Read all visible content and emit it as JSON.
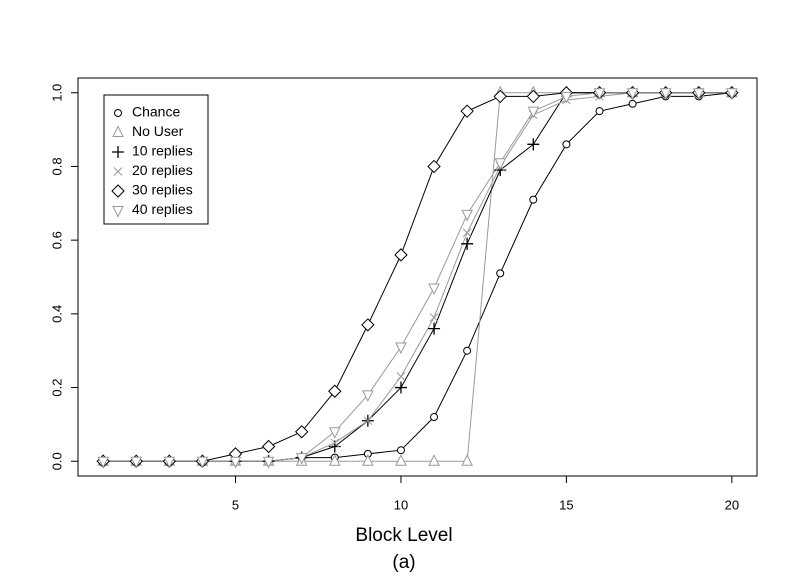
{
  "chart_data": {
    "type": "line",
    "xlabel": "Block Level",
    "caption": "(a)",
    "x": [
      1,
      2,
      3,
      4,
      5,
      6,
      7,
      8,
      9,
      10,
      11,
      12,
      13,
      14,
      15,
      16,
      17,
      18,
      19,
      20
    ],
    "series": [
      {
        "name": "Chance",
        "color": "#000000",
        "marker": "circle",
        "values": [
          0,
          0,
          0,
          0,
          0,
          0,
          0.01,
          0.01,
          0.02,
          0.03,
          0.12,
          0.3,
          0.51,
          0.71,
          0.86,
          0.95,
          0.97,
          0.99,
          0.99,
          1.0
        ]
      },
      {
        "name": "No User",
        "color": "#999999",
        "marker": "triangle",
        "values": [
          0,
          0,
          0,
          0,
          0,
          0,
          0,
          0,
          0,
          0,
          0,
          0,
          1.0,
          1.0,
          1.0,
          1.0,
          1.0,
          1.0,
          1.0,
          1.0
        ]
      },
      {
        "name": "10 replies",
        "color": "#000000",
        "marker": "plus",
        "values": [
          0,
          0,
          0,
          0,
          0,
          0,
          0.01,
          0.04,
          0.11,
          0.2,
          0.36,
          0.59,
          0.79,
          0.86,
          1.0,
          1.0,
          1.0,
          1.0,
          1.0,
          1.0
        ]
      },
      {
        "name": "20 replies",
        "color": "#999999",
        "marker": "cross",
        "values": [
          0,
          0,
          0,
          0,
          0,
          0,
          0.01,
          0.05,
          0.11,
          0.23,
          0.39,
          0.62,
          0.8,
          0.94,
          0.98,
          0.99,
          1.0,
          1.0,
          1.0,
          1.0
        ]
      },
      {
        "name": "30 replies",
        "color": "#000000",
        "marker": "diamond",
        "values": [
          0,
          0,
          0,
          0,
          0.02,
          0.04,
          0.08,
          0.19,
          0.37,
          0.56,
          0.8,
          0.95,
          0.99,
          0.99,
          1.0,
          1.0,
          1.0,
          1.0,
          1.0,
          1.0
        ]
      },
      {
        "name": "40 replies",
        "color": "#999999",
        "marker": "triangle-down",
        "values": [
          0,
          0,
          0,
          0,
          0,
          0,
          0.01,
          0.08,
          0.18,
          0.31,
          0.47,
          0.67,
          0.81,
          0.95,
          0.99,
          1.0,
          1.0,
          1.0,
          1.0,
          1.0
        ]
      }
    ],
    "xlim": [
      0.24,
      20.76
    ],
    "xticks": [
      5,
      10,
      15,
      20
    ],
    "ylim": [
      -0.04,
      1.04
    ],
    "yticks": [
      {
        "value": 0,
        "label": "0.0"
      },
      0.2,
      0.4,
      0.6,
      0.8,
      {
        "value": 1,
        "label": "1.0"
      }
    ],
    "legend": "top-left"
  }
}
